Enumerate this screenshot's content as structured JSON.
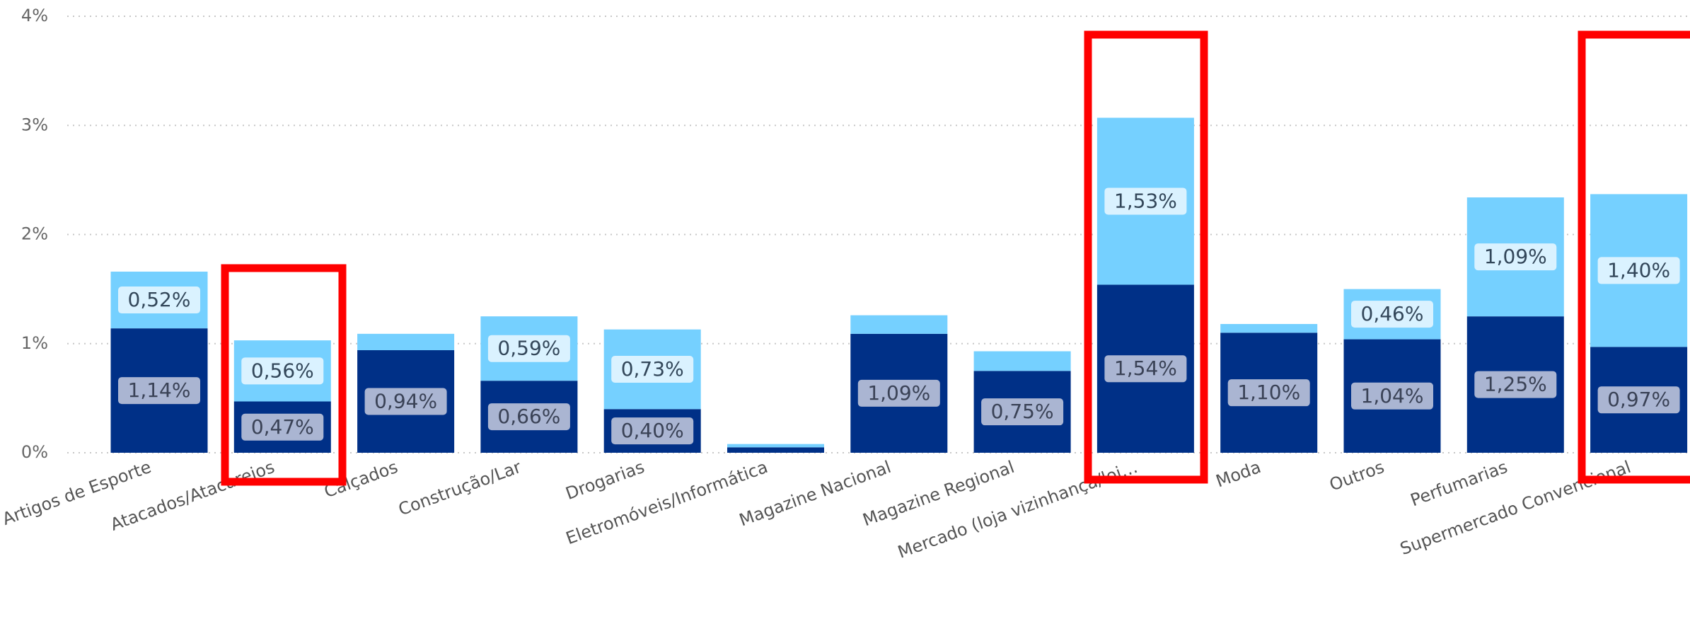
{
  "chart_data": {
    "type": "stacked_bar",
    "categories": [
      "Artigos de Esporte",
      "Atacados/Atacarejos",
      "Calçados",
      "Construção/Lar",
      "Drogarias",
      "Eletromóveis/Informática",
      "Magazine Nacional",
      "Magazine Regional",
      "Mercado (loja vizinhança/loj…",
      "Moda",
      "Outros",
      "Perfumarias",
      "Supermercado Convencional"
    ],
    "series": [
      {
        "color": "#003087",
        "values": [
          1.14,
          0.47,
          0.94,
          0.66,
          0.4,
          0.05,
          1.09,
          0.75,
          1.54,
          1.1,
          1.04,
          1.25,
          0.97
        ],
        "value_labels": [
          "1,14%",
          "0,47%",
          "0,94%",
          "0,66%",
          "0,40%",
          null,
          "1,09%",
          "0,75%",
          "1,54%",
          "1,10%",
          "1,04%",
          "1,25%",
          "0,97%"
        ]
      },
      {
        "color": "#75d0ff",
        "values": [
          0.52,
          0.56,
          0.15,
          0.59,
          0.73,
          0.03,
          0.17,
          0.18,
          1.53,
          0.08,
          0.46,
          1.09,
          1.4
        ],
        "value_labels": [
          "0,52%",
          "0,56%",
          null,
          "0,59%",
          "0,73%",
          null,
          null,
          null,
          "1,53%",
          null,
          "0,46%",
          "1,09%",
          "1,40%"
        ]
      }
    ],
    "ylim": [
      0,
      4
    ],
    "yticks": [
      {
        "value": 0,
        "label": "0%"
      },
      {
        "value": 1,
        "label": "1%"
      },
      {
        "value": 2,
        "label": "2%"
      },
      {
        "value": 3,
        "label": "3%"
      },
      {
        "value": 4,
        "label": "4%"
      }
    ],
    "grid": true
  }
}
